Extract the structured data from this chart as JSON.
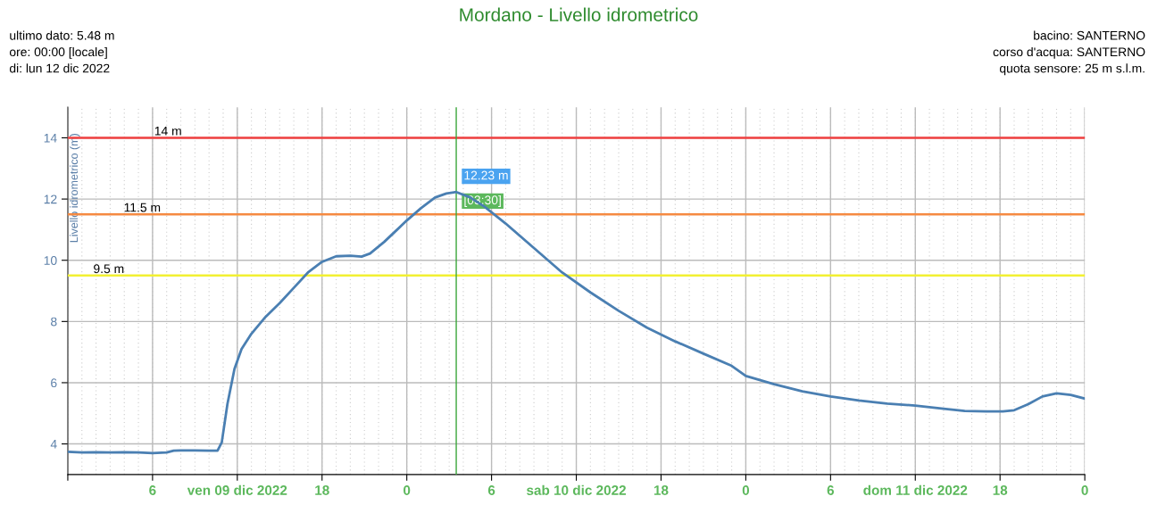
{
  "chart_data": {
    "type": "line",
    "title": "Mordano - Livello idrometrico",
    "ylabel": "Livello idrometrico (m)",
    "x": [
      "2022-12-09T00:00",
      "2022-12-09T01:00",
      "2022-12-09T02:00",
      "2022-12-09T03:00",
      "2022-12-09T04:00",
      "2022-12-09T05:00",
      "2022-12-09T06:00",
      "2022-12-09T07:00",
      "2022-12-09T07:30",
      "2022-12-09T08:00",
      "2022-12-09T09:00",
      "2022-12-09T10:00",
      "2022-12-09T10:36",
      "2022-12-09T10:54",
      "2022-12-09T11:18",
      "2022-12-09T11:48",
      "2022-12-09T12:18",
      "2022-12-09T13:00",
      "2022-12-09T14:00",
      "2022-12-09T15:00",
      "2022-12-09T16:00",
      "2022-12-09T17:00",
      "2022-12-09T18:00",
      "2022-12-09T19:00",
      "2022-12-09T20:00",
      "2022-12-09T20:48",
      "2022-12-09T21:24",
      "2022-12-09T22:24",
      "2022-12-09T23:12",
      "2022-12-10T00:00",
      "2022-12-10T01:00",
      "2022-12-10T02:00",
      "2022-12-10T02:48",
      "2022-12-10T03:30",
      "2022-12-10T04:30",
      "2022-12-10T05:30",
      "2022-12-10T07:00",
      "2022-12-10T09:00",
      "2022-12-10T11:00",
      "2022-12-10T13:00",
      "2022-12-10T15:00",
      "2022-12-10T17:00",
      "2022-12-10T19:00",
      "2022-12-10T21:00",
      "2022-12-10T23:00",
      "2022-12-11T00:00",
      "2022-12-11T02:00",
      "2022-12-11T04:00",
      "2022-12-11T06:00",
      "2022-12-11T08:00",
      "2022-12-11T10:00",
      "2022-12-11T12:00",
      "2022-12-11T14:00",
      "2022-12-11T15:30",
      "2022-12-11T17:00",
      "2022-12-11T18:12",
      "2022-12-11T19:00",
      "2022-12-11T20:00",
      "2022-12-11T21:00",
      "2022-12-11T22:00",
      "2022-12-11T23:00",
      "2022-12-12T00:00"
    ],
    "series": [
      {
        "color": "#4a7fb2",
        "values": [
          3.74,
          3.72,
          3.73,
          3.72,
          3.73,
          3.72,
          3.7,
          3.72,
          3.78,
          3.79,
          3.79,
          3.78,
          3.78,
          4.05,
          5.3,
          6.45,
          7.1,
          7.6,
          8.15,
          8.6,
          9.1,
          9.6,
          9.95,
          10.13,
          10.15,
          10.12,
          10.22,
          10.6,
          10.95,
          11.3,
          11.7,
          12.05,
          12.18,
          12.23,
          12.05,
          11.75,
          11.2,
          10.4,
          9.6,
          8.95,
          8.35,
          7.8,
          7.35,
          6.95,
          6.55,
          6.22,
          5.95,
          5.72,
          5.55,
          5.42,
          5.32,
          5.25,
          5.15,
          5.08,
          5.06,
          5.06,
          5.1,
          5.3,
          5.55,
          5.65,
          5.6,
          5.48
        ]
      }
    ],
    "xlim": [
      "2022-12-09T00:00",
      "2022-12-12T00:00"
    ],
    "ylim": [
      3,
      15
    ],
    "xticks": [
      {
        "value": "2022-12-09T00:00",
        "label": null
      },
      {
        "value": "2022-12-09T06:00",
        "label": "6"
      },
      {
        "value": "2022-12-09T12:00",
        "label": "ven 09 dic 2022"
      },
      {
        "value": "2022-12-09T18:00",
        "label": "18"
      },
      {
        "value": "2022-12-10T00:00",
        "label": "0"
      },
      {
        "value": "2022-12-10T06:00",
        "label": "6"
      },
      {
        "value": "2022-12-10T12:00",
        "label": "sab 10 dic 2022"
      },
      {
        "value": "2022-12-10T18:00",
        "label": "18"
      },
      {
        "value": "2022-12-11T00:00",
        "label": "0"
      },
      {
        "value": "2022-12-11T06:00",
        "label": "6"
      },
      {
        "value": "2022-12-11T12:00",
        "label": "dom 11 dic 2022"
      },
      {
        "value": "2022-12-11T18:00",
        "label": "18"
      },
      {
        "value": "2022-12-12T00:00",
        "label": "0"
      }
    ],
    "yticks": [
      4,
      6,
      8,
      10,
      12,
      14
    ],
    "grid": true,
    "marker": "none",
    "line_style": "solid",
    "ref_lines": [
      {
        "axis": "y",
        "value": 14,
        "label": "14 m",
        "color": "#f04040"
      },
      {
        "axis": "y",
        "value": 11.5,
        "label": "11.5 m",
        "color": "#f58a42"
      },
      {
        "axis": "y",
        "value": 9.5,
        "label": "9.5 m",
        "color": "#f2f032"
      },
      {
        "axis": "x",
        "value": "2022-12-10T03:30",
        "color": "#3aa63a"
      }
    ],
    "annotations": [
      {
        "text": "12.23 m",
        "x": "2022-12-10T03:30",
        "y": 12.23
      },
      {
        "text": "[03:30]",
        "x": "2022-12-10T03:30",
        "y": 12.23
      },
      "ultimo dato: 5.48 m",
      "ore: 00:00 [locale]",
      "di: lun 12 dic 2022",
      "bacino: SANTERNO",
      "corso d'acqua: SANTERNO",
      "quota sensore: 25 m s.l.m."
    ]
  }
}
